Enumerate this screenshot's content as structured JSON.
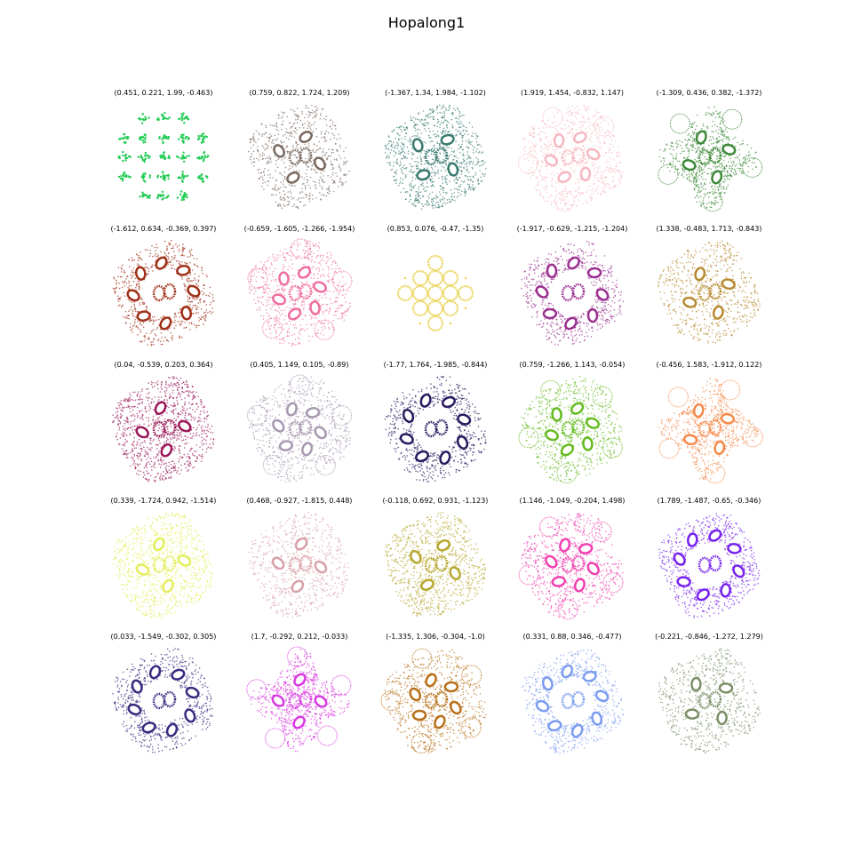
{
  "chart_data": {
    "type": "scatter",
    "title": "Hopalong1",
    "plots": [
      {
        "params": "(0.451, 0.221, 1.99, -0.463)",
        "color": "#22cc55",
        "shape": "lattice"
      },
      {
        "params": "(0.759, 0.822, 1.724, 1.209)",
        "color": "#7a6a60",
        "shape": "star"
      },
      {
        "params": "(-1.367, 1.34, 1.984, -1.102)",
        "color": "#3a7a70",
        "shape": "dense"
      },
      {
        "params": "(1.919, 1.454, -0.832, 1.147)",
        "color": "#f6b8c0",
        "shape": "loops"
      },
      {
        "params": "(-1.309, 0.436, 0.382, -1.372)",
        "color": "#3f8a3a",
        "shape": "flower"
      },
      {
        "params": "(-1.612, 0.634, -0.369, 0.397)",
        "color": "#a03018",
        "shape": "ring"
      },
      {
        "params": "(-0.659, -1.605, -1.266, -1.954)",
        "color": "#ee6fa0",
        "shape": "loops"
      },
      {
        "params": "(0.853, 0.076, -0.47, -1.35)",
        "color": "#e8d048",
        "shape": "circles"
      },
      {
        "params": "(-1.917, -0.629, -1.215, -1.204)",
        "color": "#9a3090",
        "shape": "ring"
      },
      {
        "params": "(1.338, -0.483, 1.713, -0.843)",
        "color": "#b88a30",
        "shape": "star"
      },
      {
        "params": "(0.04, -0.539, 0.203, 0.364)",
        "color": "#9a1858",
        "shape": "dense"
      },
      {
        "params": "(0.405, 1.149, 0.105, -0.89)",
        "color": "#a898b0",
        "shape": "loops"
      },
      {
        "params": "(-1.77, 1.764, -1.985, -0.844)",
        "color": "#2a1a60",
        "shape": "ring"
      },
      {
        "params": "(0.759, -1.266, 1.143, -0.054)",
        "color": "#66bb22",
        "shape": "loops"
      },
      {
        "params": "(-0.456, 1.583, -1.912, 0.122)",
        "color": "#f58a4a",
        "shape": "flower"
      },
      {
        "params": "(0.339, -1.724, 0.942, -1.514)",
        "color": "#e4ee5a",
        "shape": "dense"
      },
      {
        "params": "(0.468, -0.927, -1.815, 0.448)",
        "color": "#d8a0a8",
        "shape": "star"
      },
      {
        "params": "(-0.118, 0.692, 0.931, -1.123)",
        "color": "#b8a830",
        "shape": "dense"
      },
      {
        "params": "(1.146, -1.049, -0.204, 1.498)",
        "color": "#f040b0",
        "shape": "loops"
      },
      {
        "params": "(1.789, -1.487, -0.65, -0.346)",
        "color": "#7722ee",
        "shape": "ring"
      },
      {
        "params": "(0.033, -1.549, -0.302, 0.305)",
        "color": "#3a2a80",
        "shape": "ring"
      },
      {
        "params": "(1.7, -0.292, 0.212, -0.033)",
        "color": "#d83ae0",
        "shape": "flower"
      },
      {
        "params": "(-1.335, 1.306, -0.304, -1.0)",
        "color": "#b87018",
        "shape": "loops"
      },
      {
        "params": "(0.331, 0.88, 0.346, -0.477)",
        "color": "#7b9cf0",
        "shape": "ring"
      },
      {
        "params": "(-0.221, -0.846, -1.272, 1.279)",
        "color": "#7a9068",
        "shape": "star"
      }
    ]
  }
}
